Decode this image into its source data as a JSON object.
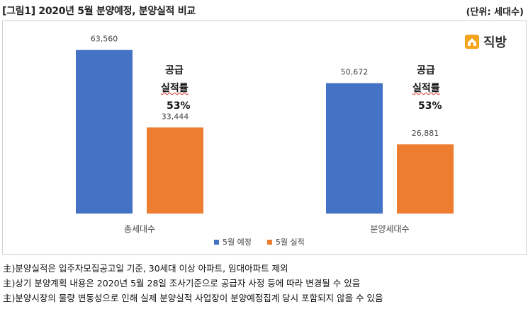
{
  "header": {
    "title": "[그림1] 2020년 5월 분양예정, 분양실적 비교",
    "unit": "(단위: 세대수)"
  },
  "logo": {
    "text": "직방"
  },
  "colors": {
    "planned": "#4472c4",
    "actual": "#ed7d31"
  },
  "annotations": [
    {
      "line1": "공급",
      "line2": "실적률",
      "line3": "53%"
    },
    {
      "line1": "공급",
      "line2": "실적률",
      "line3": "53%"
    }
  ],
  "chart_data": {
    "type": "bar",
    "categories": [
      "총세대수",
      "분양세대수"
    ],
    "series": [
      {
        "name": "5월 예정",
        "values": [
          63560,
          50672
        ],
        "labels": [
          "63,560",
          "50,672"
        ]
      },
      {
        "name": "5월 실적",
        "values": [
          33444,
          26881
        ],
        "labels": [
          "33,444",
          "26,881"
        ]
      }
    ],
    "ylim": [
      0,
      72000
    ],
    "grid": false,
    "legend": "bottom"
  },
  "notes": [
    "主)분양실적은 입주자모집공고일 기준, 30세대 이상 아파트, 임대아파트 제외",
    "主)상기 분양계획 내용은 2020년 5월 28일 조사기준으로 공급자 사정 등에 따라 변경될 수 있음",
    "主)분양시장의 물량 변동성으로 인해 실제 분양실적 사업장이 분양예정집계 당시 포함되지 않을 수 있음"
  ]
}
